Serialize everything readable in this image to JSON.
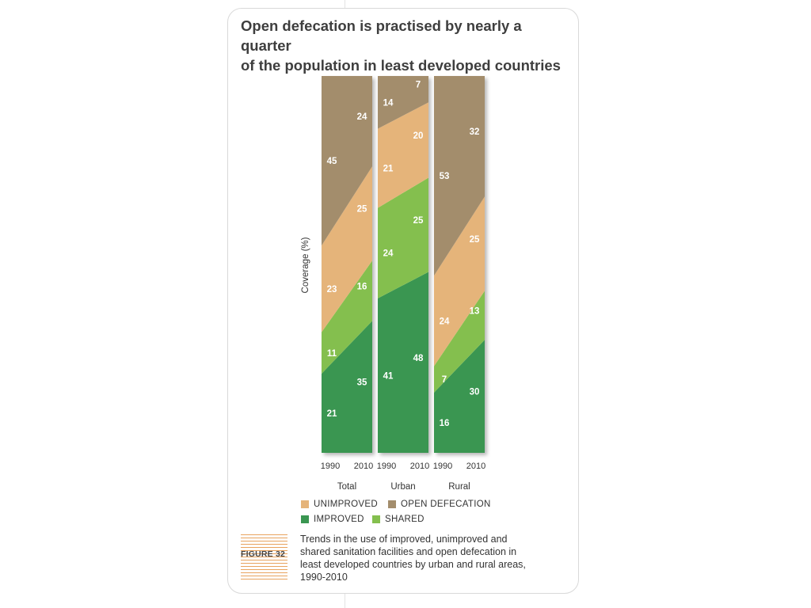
{
  "title_lines": [
    "Open defecation is practised by nearly a quarter",
    "of the population in least developed countries"
  ],
  "chart_data": {
    "type": "area",
    "subtype": "stacked-100-percent-panels",
    "ylabel": "Coverage (%)",
    "ylim": [
      0,
      100
    ],
    "grid": false,
    "legend_position": "bottom",
    "x_ticks": [
      "1990",
      "2010"
    ],
    "series_order": [
      "IMPROVED",
      "SHARED",
      "UNIMPROVED",
      "OPEN DEFECATION"
    ],
    "colors": {
      "IMPROVED": "#3a9651",
      "SHARED": "#84bf4e",
      "UNIMPROVED": "#e5b47a",
      "OPEN DEFECATION": "#a38d6c"
    },
    "panels": [
      {
        "name": "Total",
        "values": {
          "1990": {
            "IMPROVED": 21,
            "SHARED": 11,
            "UNIMPROVED": 23,
            "OPEN DEFECATION": 45
          },
          "2010": {
            "IMPROVED": 35,
            "SHARED": 16,
            "UNIMPROVED": 25,
            "OPEN DEFECATION": 24
          }
        }
      },
      {
        "name": "Urban",
        "values": {
          "1990": {
            "IMPROVED": 41,
            "SHARED": 24,
            "UNIMPROVED": 21,
            "OPEN DEFECATION": 14
          },
          "2010": {
            "IMPROVED": 48,
            "SHARED": 25,
            "UNIMPROVED": 20,
            "OPEN DEFECATION": 7
          }
        }
      },
      {
        "name": "Rural",
        "values": {
          "1990": {
            "IMPROVED": 16,
            "SHARED": 7,
            "UNIMPROVED": 24,
            "OPEN DEFECATION": 53
          },
          "2010": {
            "IMPROVED": 30,
            "SHARED": 13,
            "UNIMPROVED": 25,
            "OPEN DEFECATION": 32
          }
        }
      }
    ]
  },
  "legend": [
    {
      "label": "UNIMPROVED",
      "color": "#e5b47a"
    },
    {
      "label": "OPEN DEFECATION",
      "color": "#a38d6c"
    },
    {
      "label": "IMPROVED",
      "color": "#3a9651"
    },
    {
      "label": "SHARED",
      "color": "#84bf4e"
    }
  ],
  "figure_label": "FIGURE 32",
  "caption_lines": [
    "Trends in the use of improved, unimproved and",
    "shared sanitation facilities and open defecation in",
    "least developed countries by urban and rural areas,",
    "1990-2010"
  ]
}
